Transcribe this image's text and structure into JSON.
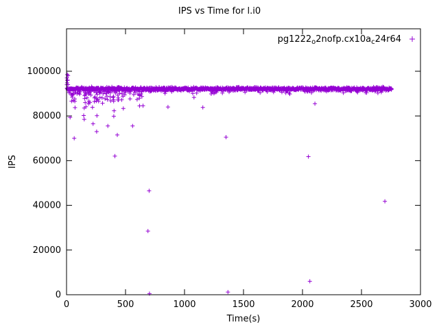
{
  "page": {
    "title": "IPS vs Time for l.i0"
  },
  "chart_data": {
    "type": "scatter",
    "title": "IPS vs Time for l.i0",
    "xlabel": "Time(s)",
    "ylabel": "IPS",
    "xlim": [
      0,
      3000
    ],
    "ylim": [
      0,
      119000
    ],
    "xticks": [
      0,
      500,
      1000,
      1500,
      2000,
      2500,
      3000
    ],
    "yticks": [
      0,
      20000,
      40000,
      60000,
      80000,
      100000
    ],
    "grid": false,
    "legend": {
      "position": "top-right",
      "label_plain": "pg1222_o2nofp.cx10a_c24r64",
      "parts": [
        {
          "text": "pg1222",
          "sub": false
        },
        {
          "text": "o",
          "sub": true
        },
        {
          "text": "2nofp.cx10a",
          "sub": false
        },
        {
          "text": "c",
          "sub": true
        },
        {
          "text": "24r64",
          "sub": false
        }
      ]
    },
    "series": [
      {
        "name": "pg1222_o2nofp.cx10a_c24r64",
        "color": "#9400d3",
        "marker": "plus",
        "seed": 42,
        "band": {
          "comment": "steady-state band of throughput samples",
          "x_start": 3,
          "x_end": 2755,
          "count": 1300,
          "y_mean": 92100,
          "y_std": 700,
          "dip_prob": 0.1,
          "dip_max": 1800
        },
        "start_high": {
          "comment": "initial burst above the band",
          "count": 8,
          "x_min": 2,
          "x_max": 14,
          "y_min": 93500,
          "y_max": 99000
        },
        "early_scatter": {
          "comment": "warm-up scatter below the band",
          "count": 48,
          "x_min": 15,
          "x_max": 650,
          "y_top": 90500,
          "y_spread": 11500
        },
        "early_band_fuzz": {
          "count": 40,
          "x_min": 10,
          "x_max": 650,
          "y_min": 86500,
          "y_max": 91000
        },
        "outliers": [
          [
            65,
            70000
          ],
          [
            150,
            78500
          ],
          [
            225,
            76500
          ],
          [
            255,
            73000
          ],
          [
            350,
            75500
          ],
          [
            410,
            62000
          ],
          [
            430,
            71500
          ],
          [
            560,
            75500
          ],
          [
            690,
            28500
          ],
          [
            700,
            46500
          ],
          [
            703,
            500
          ],
          [
            860,
            84000
          ],
          [
            1080,
            88300
          ],
          [
            1155,
            83800
          ],
          [
            1352,
            70500
          ],
          [
            1368,
            1200
          ],
          [
            2050,
            61800
          ],
          [
            2062,
            6000
          ],
          [
            2105,
            85500
          ],
          [
            2698,
            41800
          ]
        ]
      }
    ]
  }
}
